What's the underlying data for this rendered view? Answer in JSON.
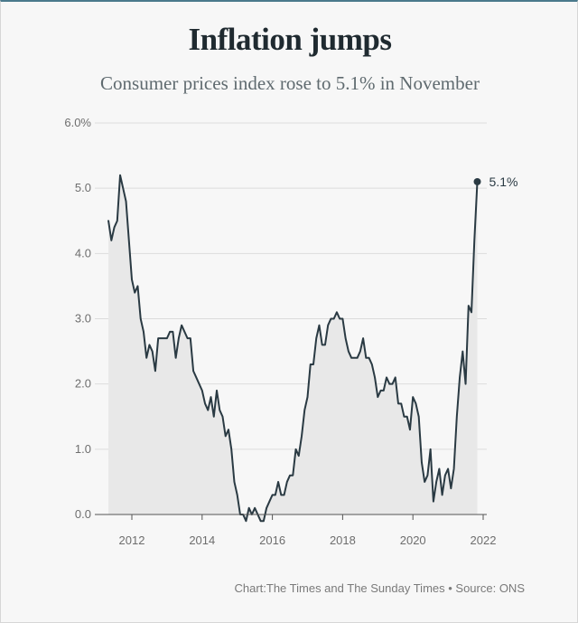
{
  "title": "Inflation jumps",
  "subtitle": "Consumer prices index rose to 5.1% in November",
  "source": "Chart:The Times and The Sunday Times • Source: ONS",
  "colors": {
    "line": "#2a3a43",
    "area": "#e8e8e8",
    "grid": "#dcdcdc",
    "axis": "#555555"
  },
  "chart_data": {
    "type": "area",
    "title": "Inflation jumps",
    "subtitle": "Consumer prices index rose to 5.1% in November",
    "xlabel": "",
    "ylabel": "",
    "grid": true,
    "y_ticks": [
      {
        "value": 0,
        "label": "0.0"
      },
      {
        "value": 1,
        "label": "1.0"
      },
      {
        "value": 2,
        "label": "2.0"
      },
      {
        "value": 3,
        "label": "3.0"
      },
      {
        "value": 4,
        "label": "4.0"
      },
      {
        "value": 5,
        "label": "5.0"
      },
      {
        "value": 6,
        "label": "6.0%"
      }
    ],
    "x_ticks": [
      {
        "value": "2012-01",
        "label": "2012"
      },
      {
        "value": "2014-01",
        "label": "2014"
      },
      {
        "value": "2016-01",
        "label": "2016"
      },
      {
        "value": "2018-01",
        "label": "2018"
      },
      {
        "value": "2020-01",
        "label": "2020"
      },
      {
        "value": "2022-01",
        "label": "2022"
      }
    ],
    "ylim": [
      0,
      6
    ],
    "xlim": [
      "2011-02",
      "2022-03"
    ],
    "end_label": "5.1%",
    "series": [
      {
        "x": [
          "2011-05",
          "2011-06",
          "2011-07",
          "2011-08",
          "2011-09",
          "2011-10",
          "2011-11",
          "2011-12",
          "2012-01",
          "2012-02",
          "2012-03",
          "2012-04",
          "2012-05",
          "2012-06",
          "2012-07",
          "2012-08",
          "2012-09",
          "2012-10",
          "2012-11",
          "2012-12",
          "2013-01",
          "2013-02",
          "2013-03",
          "2013-04",
          "2013-05",
          "2013-06",
          "2013-07",
          "2013-08",
          "2013-09",
          "2013-10",
          "2013-11",
          "2013-12",
          "2014-01",
          "2014-02",
          "2014-03",
          "2014-04",
          "2014-05",
          "2014-06",
          "2014-07",
          "2014-08",
          "2014-09",
          "2014-10",
          "2014-11",
          "2014-12",
          "2015-01",
          "2015-02",
          "2015-03",
          "2015-04",
          "2015-05",
          "2015-06",
          "2015-07",
          "2015-08",
          "2015-09",
          "2015-10",
          "2015-11",
          "2015-12",
          "2016-01",
          "2016-02",
          "2016-03",
          "2016-04",
          "2016-05",
          "2016-06",
          "2016-07",
          "2016-08",
          "2016-09",
          "2016-10",
          "2016-11",
          "2016-12",
          "2017-01",
          "2017-02",
          "2017-03",
          "2017-04",
          "2017-05",
          "2017-06",
          "2017-07",
          "2017-08",
          "2017-09",
          "2017-10",
          "2017-11",
          "2017-12",
          "2018-01",
          "2018-02",
          "2018-03",
          "2018-04",
          "2018-05",
          "2018-06",
          "2018-07",
          "2018-08",
          "2018-09",
          "2018-10",
          "2018-11",
          "2018-12",
          "2019-01",
          "2019-02",
          "2019-03",
          "2019-04",
          "2019-05",
          "2019-06",
          "2019-07",
          "2019-08",
          "2019-09",
          "2019-10",
          "2019-11",
          "2019-12",
          "2020-01",
          "2020-02",
          "2020-03",
          "2020-04",
          "2020-05",
          "2020-06",
          "2020-07",
          "2020-08",
          "2020-09",
          "2020-10",
          "2020-11",
          "2020-12",
          "2021-01",
          "2021-02",
          "2021-03",
          "2021-04",
          "2021-05",
          "2021-06",
          "2021-07",
          "2021-08",
          "2021-09",
          "2021-10",
          "2021-11"
        ],
        "values": [
          4.5,
          4.2,
          4.4,
          4.5,
          5.2,
          5.0,
          4.8,
          4.2,
          3.6,
          3.4,
          3.5,
          3.0,
          2.8,
          2.4,
          2.6,
          2.5,
          2.2,
          2.7,
          2.7,
          2.7,
          2.7,
          2.8,
          2.8,
          2.4,
          2.7,
          2.9,
          2.8,
          2.7,
          2.7,
          2.2,
          2.1,
          2.0,
          1.9,
          1.7,
          1.6,
          1.8,
          1.5,
          1.9,
          1.6,
          1.5,
          1.2,
          1.3,
          1.0,
          0.5,
          0.3,
          0.0,
          0.0,
          -0.1,
          0.1,
          0.0,
          0.1,
          0.0,
          -0.1,
          -0.1,
          0.1,
          0.2,
          0.3,
          0.3,
          0.5,
          0.3,
          0.3,
          0.5,
          0.6,
          0.6,
          1.0,
          0.9,
          1.2,
          1.6,
          1.8,
          2.3,
          2.3,
          2.7,
          2.9,
          2.6,
          2.6,
          2.9,
          3.0,
          3.0,
          3.1,
          3.0,
          3.0,
          2.7,
          2.5,
          2.4,
          2.4,
          2.4,
          2.5,
          2.7,
          2.4,
          2.4,
          2.3,
          2.1,
          1.8,
          1.9,
          1.9,
          2.1,
          2.0,
          2.0,
          2.1,
          1.7,
          1.7,
          1.5,
          1.5,
          1.3,
          1.8,
          1.7,
          1.5,
          0.8,
          0.5,
          0.6,
          1.0,
          0.2,
          0.5,
          0.7,
          0.3,
          0.6,
          0.7,
          0.4,
          0.7,
          1.5,
          2.1,
          2.5,
          2.0,
          3.2,
          3.1,
          4.2,
          5.1
        ]
      }
    ]
  }
}
